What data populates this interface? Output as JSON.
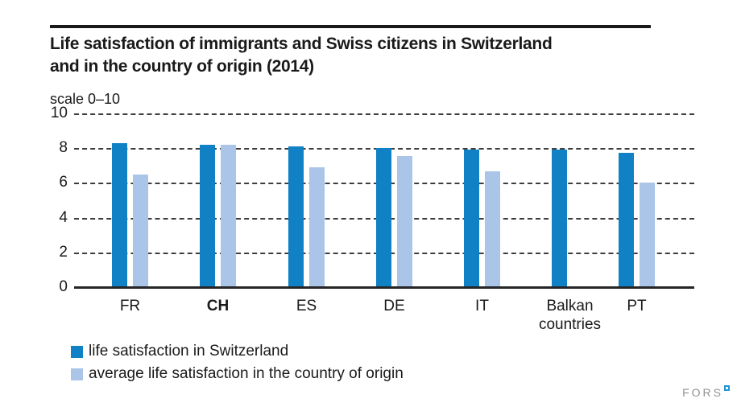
{
  "title": {
    "line1": "Life satisfaction of immigrants and Swiss citizens in Switzerland",
    "line2": "and in the country of origin (2014)"
  },
  "scale_label": "scale 0–10",
  "chart_data": {
    "type": "bar",
    "title": "Life satisfaction of immigrants and Swiss citizens in Switzerland and in the country of origin (2014)",
    "ylabel": "scale 0–10",
    "categories": [
      "FR",
      "CH",
      "ES",
      "DE",
      "IT",
      "Balkan countries",
      "PT"
    ],
    "emphasized_category": "CH",
    "series": [
      {
        "name": "life satisfaction in Switzerland",
        "color": "#1181c5",
        "values": [
          8.3,
          8.2,
          8.1,
          8.0,
          7.9,
          7.9,
          7.75
        ]
      },
      {
        "name": "average life satisfaction in the country of origin",
        "color": "#aac5e8",
        "values": [
          6.5,
          8.2,
          6.9,
          7.55,
          6.65,
          null,
          6.0
        ]
      }
    ],
    "ylim": [
      0,
      10
    ],
    "yticks": [
      0,
      2,
      4,
      6,
      8,
      10
    ],
    "grid": "dashed horizontal",
    "legend_position": "bottom-left"
  },
  "footer": {
    "logo_text": "FORS"
  }
}
